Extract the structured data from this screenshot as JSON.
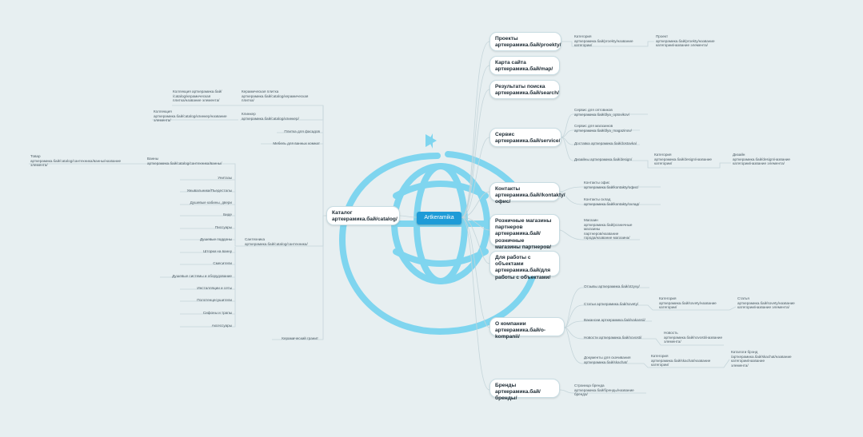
{
  "center": {
    "title": "Artkeramika"
  },
  "right_branches": [
    {
      "title": "Проекты\nарткерамика.бай/proekty/"
    },
    {
      "title": "Карта сайта\nарткерамика.бай/map/"
    },
    {
      "title": "Результаты поиска\nарткерамика.бай/search/"
    },
    {
      "title": "Сервис\nарткерамика.бай/service/"
    },
    {
      "title": "Контакты\nарткерамика.бай//kontakty/офис/"
    },
    {
      "title": "Розничные магазины\nпартнеров\nарткерамика.бай/розничные\nмагазины партнеров/"
    },
    {
      "title": "Для работы с объектами\nарткерамика.бай/для\nработы с объектами/"
    },
    {
      "title": "О компании\nарткерамика.бай/o-kompanii/"
    },
    {
      "title": "Бренды\nарткерамика.бай/бренды/"
    }
  ],
  "left_branch": {
    "title": "Каталог\nарткерамика.бай/catalog/"
  },
  "right_labels": [
    "Категория\nарткерамика.бай/proekty/название\nкатегории/",
    "Проект\nарткерамика.бай/proekty/название\nкатегории/название элемента/",
    "Сервис для оптовиков\nарткерамика.бай/dlya_optovikov/",
    "Сервис для магазинов\nарткерамика.бай/dlya_magazinov/",
    "Доставка арткерамика.бай/dostavka/",
    "Дизайны арткерамика.бай/design/",
    "Категория\nарткерамика.бай/design/название\nкатегории/",
    "Дизайн\nарткерамика.бай/design/название\nкатегории/название элемента/",
    "Контакты офис\nарткерамика.бай/kontakty/офис/",
    "Контакты склад\nарткерамика.бай/kontakty/склад/",
    "Магазин\nарткерамика.бай/розничные\nмагазины\nпартнеров/название\nгорода/название магазина/",
    "Отзывы арткерамика.бай/otzyvy/",
    "Статьи арткерамика.бай/sovety/",
    "Категория\nарткерамика.бай/sovety/название\nкатегории/",
    "Статья\nарткерамика.бай/sovety/название\nкатегории/название элемента/",
    "Вакансии арткерамика.бай/vakansii/",
    "Новости арткерамика.бай/novosti/",
    "Новость\nарткерамика.бай/novosti/название\nэлемента/",
    "Документы для скачивания\nарткерамика.бай/skachat/",
    "Категория\nарткерамика.бай/skachat/название\nкатегории/",
    "Каталоги брэнд\n/арткерамика.бай/skachat/название\nкатегории/название\nэлемента/",
    "Страница бренда\nарткерамика.бай/бренды/название\nбренда/"
  ],
  "left_labels": [
    "Керамическая плитка\nарткерамика.бай/catalog/керамическая\nплитка/",
    "Коллекция арткерамика.бай/\n/catalog/керамическая\nплитка/название элемента/",
    "Клинкер\nарткерамика.бай/catalog/клинкер/",
    "Коллекция\nарткерамика.бай/catalog/клинкер/название\nэлемента/",
    "Плитка для фасадов",
    "Мебель для ванных комнат",
    "Ванны\nарткерамика.бай/catalog/сантехника/ванны/",
    "Товар\nарткерамика.бай/catalog/сантехника/ванны/название\nэлемента/",
    "Унитазы",
    "Умывальники/Пьедесталы",
    "Душевые кабины, двери",
    "Биде",
    "Писсуары",
    "Душевые поддоны",
    "Шторки на ванну",
    "Смесители",
    "Душевые системы и оборудование",
    "Инсталляции и сеты",
    "Полотенцесушители",
    "Сифоны и трапы",
    "Аксессуары",
    "Сантехника\nарткерамика.бай/catalog/сантехника/",
    "Керамический гранит"
  ]
}
